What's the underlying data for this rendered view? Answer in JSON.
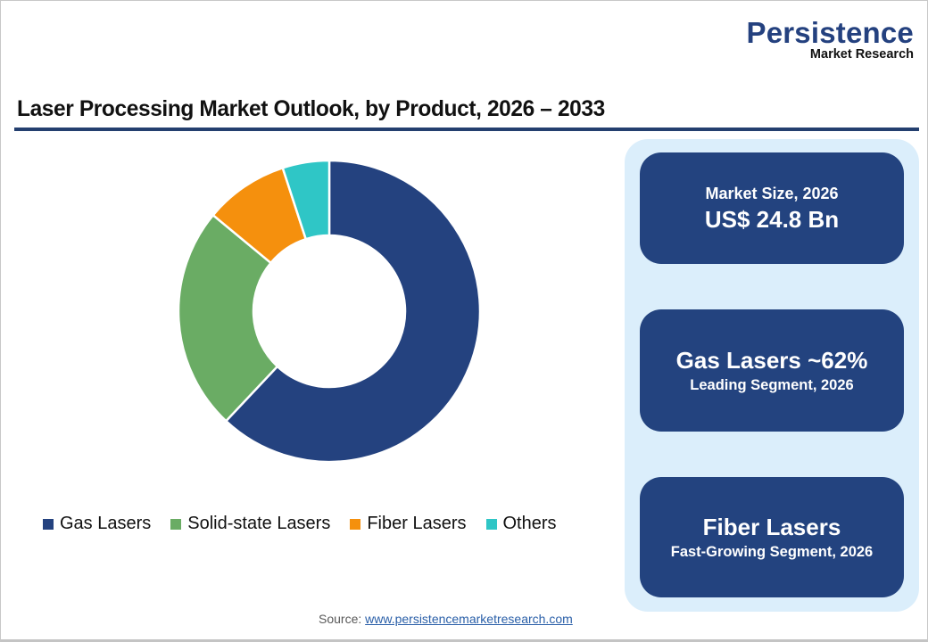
{
  "logo": {
    "name": "Persistence",
    "subtitle": "Market Research"
  },
  "title": "Laser Processing Market Outlook, by Product, 2026 – 2033",
  "colors": {
    "gas_lasers": "#24427f",
    "solid_state_lasers": "#6aac64",
    "fiber_lasers": "#f5900d",
    "others": "#2fc6c6",
    "title_rule": "#243f6f",
    "panel_bg": "#dbeefb",
    "card_bg": "#23437f"
  },
  "chart_data": {
    "type": "pie",
    "variant": "donut",
    "title": "Laser Processing Market Outlook, by Product, 2026 – 2033",
    "categories": [
      "Gas Lasers",
      "Solid-state Lasers",
      "Fiber Lasers",
      "Others"
    ],
    "values": [
      62,
      24,
      9,
      5
    ],
    "unit": "%",
    "start_angle": "top (12 o'clock), clockwise",
    "legend_position": "bottom",
    "colors": [
      "#24427f",
      "#6aac64",
      "#f5900d",
      "#2fc6c6"
    ]
  },
  "legend": [
    {
      "label": "Gas Lasers",
      "color": "#24427f"
    },
    {
      "label": "Solid-state Lasers",
      "color": "#6aac64"
    },
    {
      "label": "Fiber Lasers",
      "color": "#f5900d"
    },
    {
      "label": "Others",
      "color": "#2fc6c6"
    }
  ],
  "cards": [
    {
      "label": "Market Size, 2026",
      "value": "US$ 24.8 Bn"
    },
    {
      "value": "Gas Lasers ~62%",
      "label": "Leading Segment, 2026"
    },
    {
      "value": "Fiber Lasers",
      "label": "Fast-Growing Segment, 2026"
    }
  ],
  "source": {
    "prefix": "Source:",
    "link_text": "www.persistencemarketresearch.com"
  }
}
